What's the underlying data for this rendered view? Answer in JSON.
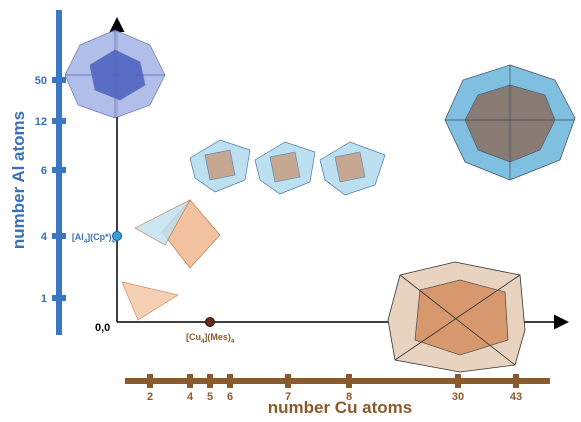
{
  "y_axis": {
    "title": "number Al atoms",
    "ticks": [
      "1",
      "4",
      "6",
      "12",
      "50"
    ]
  },
  "x_axis": {
    "title": "number Cu atoms",
    "ticks": [
      "2",
      "4",
      "5",
      "6",
      "7",
      "8",
      "30",
      "43"
    ]
  },
  "origin": "0,0",
  "al_compound": [
    "[Al",
    "4",
    "](Cp*)",
    "4"
  ],
  "cu_compound": [
    "[Cu",
    "4",
    "](Mes)",
    "4"
  ]
}
